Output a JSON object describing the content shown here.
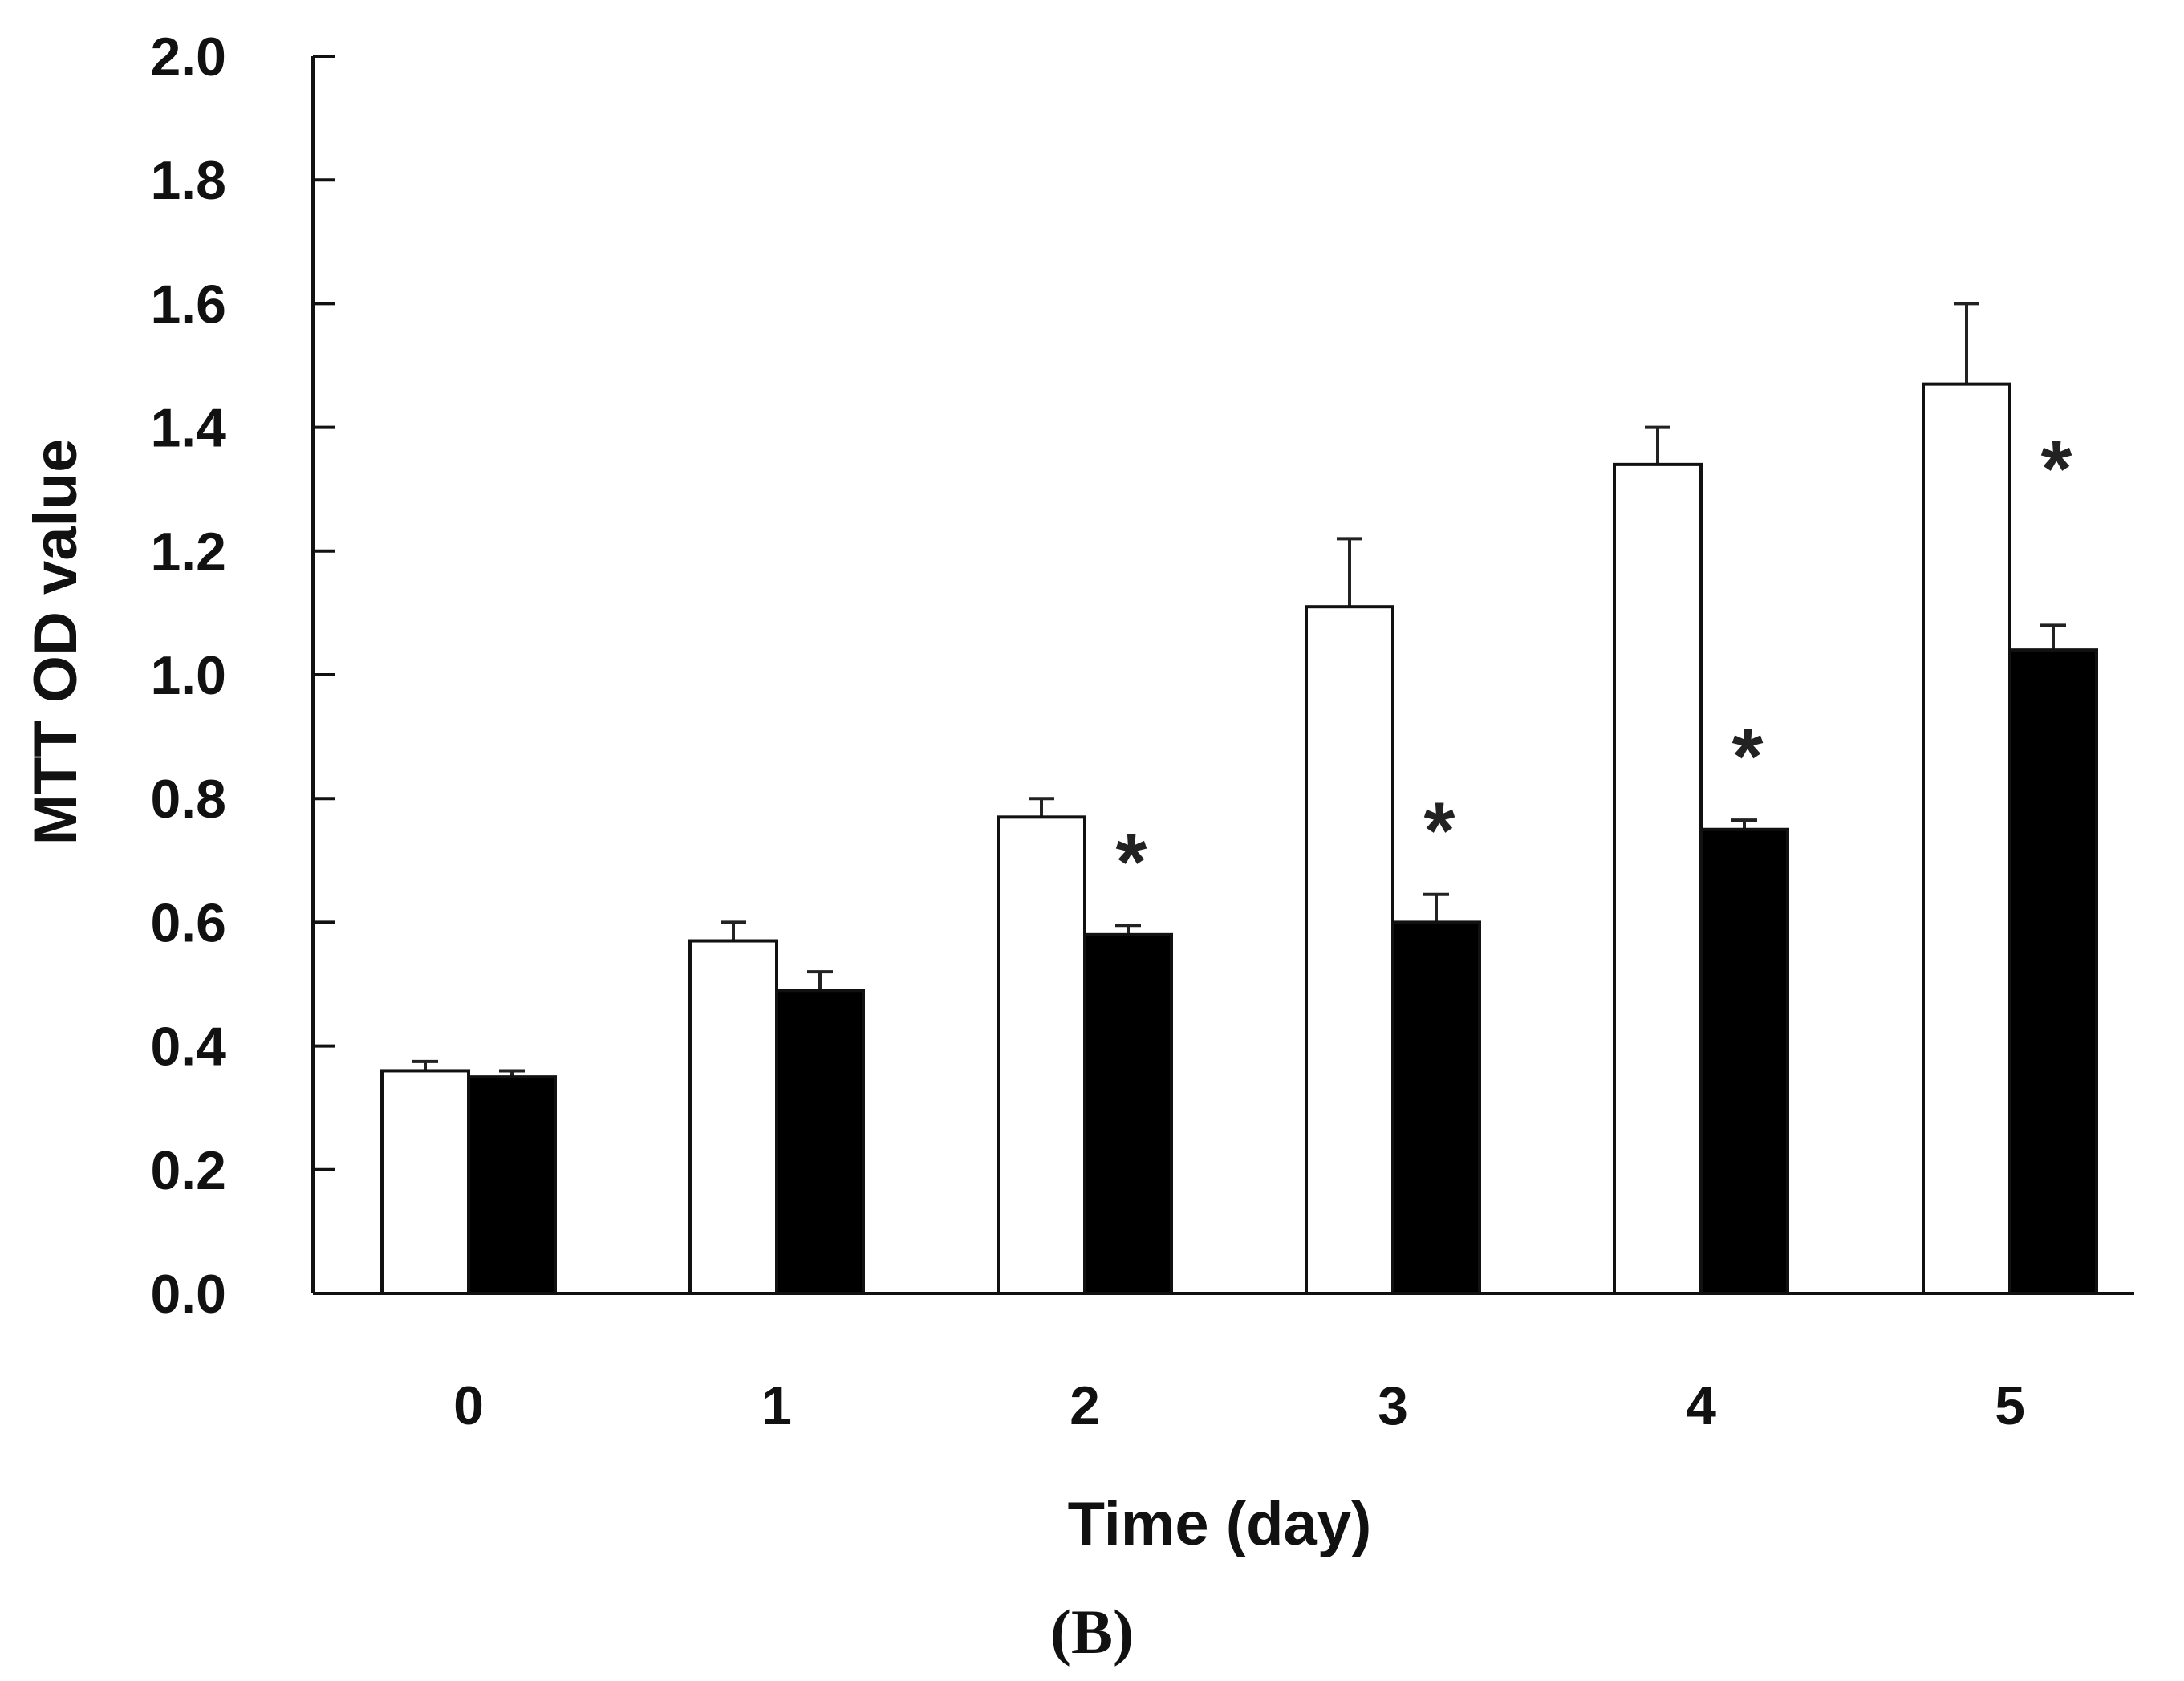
{
  "chart_data": {
    "type": "bar",
    "title": "",
    "panel_label": "(B)",
    "xlabel": "Time (day)",
    "ylabel": "MTT OD value",
    "ylim": [
      0.0,
      2.0
    ],
    "yticks": [
      "0.0",
      "0.2",
      "0.4",
      "0.6",
      "0.8",
      "1.0",
      "1.2",
      "1.4",
      "1.6",
      "1.8",
      "2.0"
    ],
    "categories": [
      "0",
      "1",
      "2",
      "3",
      "4",
      "5"
    ],
    "grid": false,
    "legend": "none",
    "series": [
      {
        "name": "white bars",
        "color": "#ffffff",
        "values": [
          0.36,
          0.57,
          0.77,
          1.11,
          1.34,
          1.47
        ],
        "errors": [
          0.015,
          0.03,
          0.03,
          0.11,
          0.06,
          0.13
        ]
      },
      {
        "name": "black bars",
        "color": "#000000",
        "values": [
          0.35,
          0.49,
          0.58,
          0.6,
          0.75,
          1.04
        ],
        "errors": [
          0.01,
          0.03,
          0.015,
          0.045,
          0.015,
          0.04
        ]
      }
    ],
    "annotations": [
      {
        "category": "2",
        "text": "*"
      },
      {
        "category": "3",
        "text": "*"
      },
      {
        "category": "4",
        "text": "*"
      },
      {
        "category": "5",
        "text": "*"
      }
    ]
  }
}
